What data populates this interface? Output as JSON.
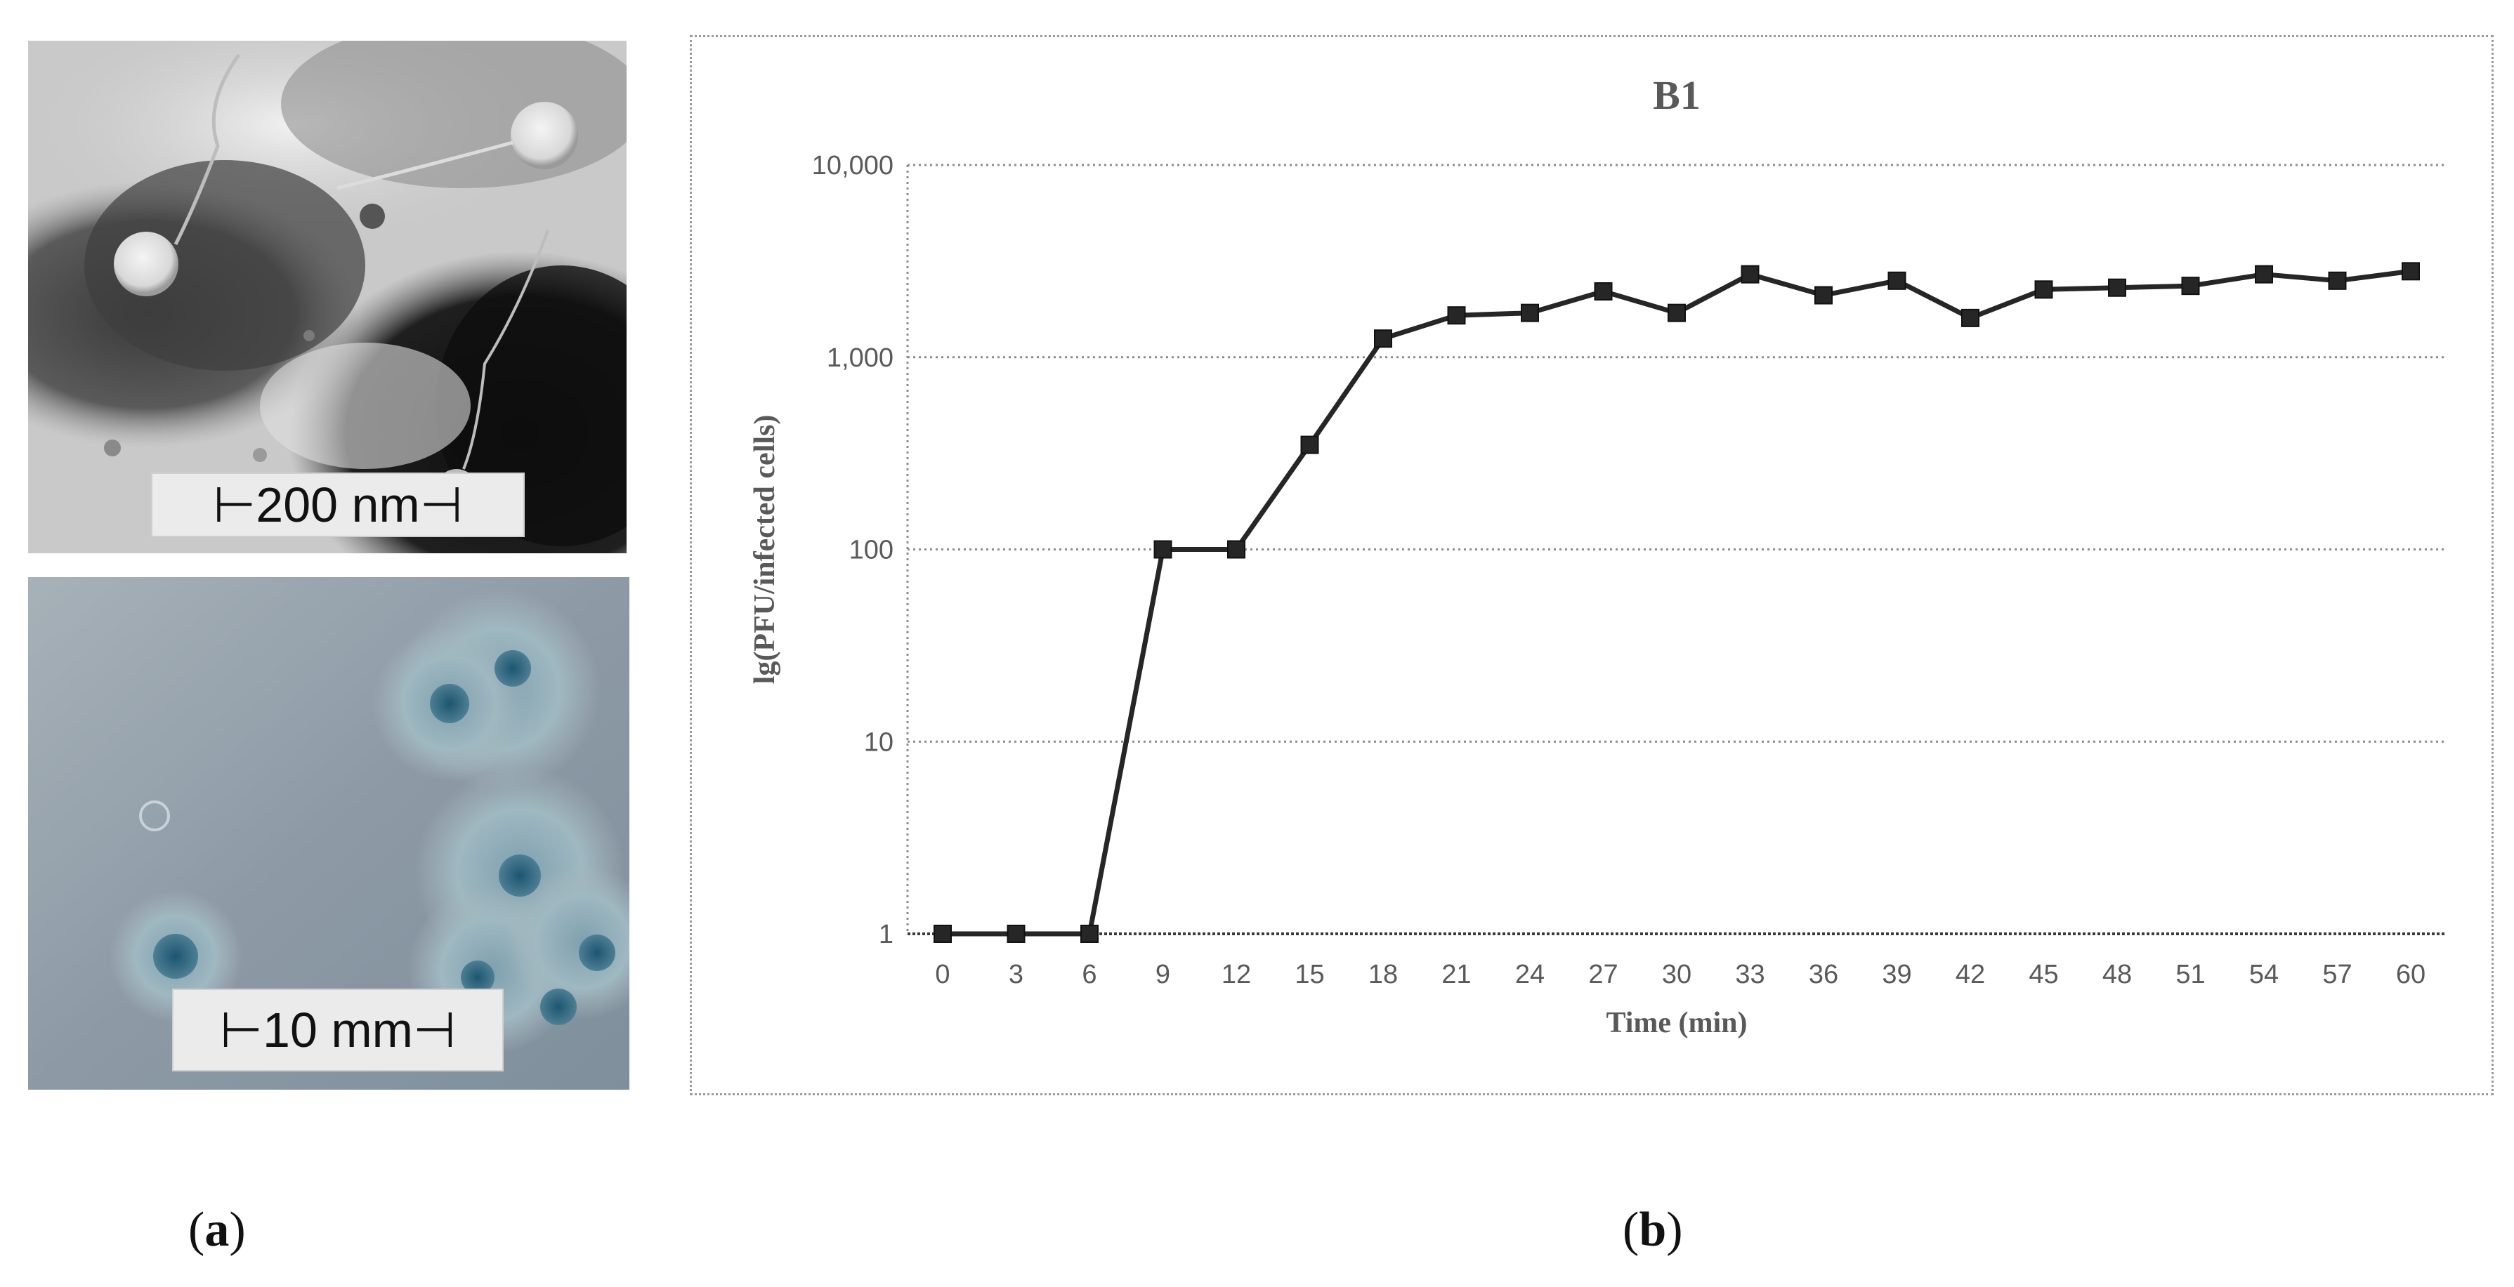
{
  "panels": {
    "a": {
      "label": "a",
      "tem_scale": "⊢200 nm⊣",
      "plate_scale": "⊢10 mm⊣"
    },
    "b": {
      "label": "b"
    }
  },
  "chart_data": {
    "type": "line",
    "title": "B1",
    "xlabel": "Time (min)",
    "ylabel": "lg(PFU/infected cells)",
    "y_scale": "log",
    "ylim": [
      1,
      10000
    ],
    "y_ticks": [
      1,
      10,
      100,
      1000,
      10000
    ],
    "y_tick_labels": [
      "1",
      "10",
      "100",
      "1,000",
      "10,000"
    ],
    "grid": "horizontal-dotted",
    "legend": "none",
    "x": [
      0,
      3,
      6,
      9,
      12,
      15,
      18,
      21,
      24,
      27,
      30,
      33,
      36,
      39,
      42,
      45,
      48,
      51,
      54,
      57,
      60
    ],
    "x_tick_labels": [
      "0",
      "3",
      "6",
      "9",
      "12",
      "15",
      "18",
      "21",
      "24",
      "27",
      "30",
      "33",
      "36",
      "39",
      "42",
      "45",
      "48",
      "51",
      "54",
      "57",
      "60"
    ],
    "series": [
      {
        "marker": "square",
        "color": "#262626",
        "values": [
          1,
          1,
          1,
          100,
          100,
          350,
          1250,
          1650,
          1700,
          2200,
          1700,
          2700,
          2100,
          2500,
          1600,
          2250,
          2300,
          2350,
          2700,
          2500,
          2800
        ]
      }
    ]
  }
}
